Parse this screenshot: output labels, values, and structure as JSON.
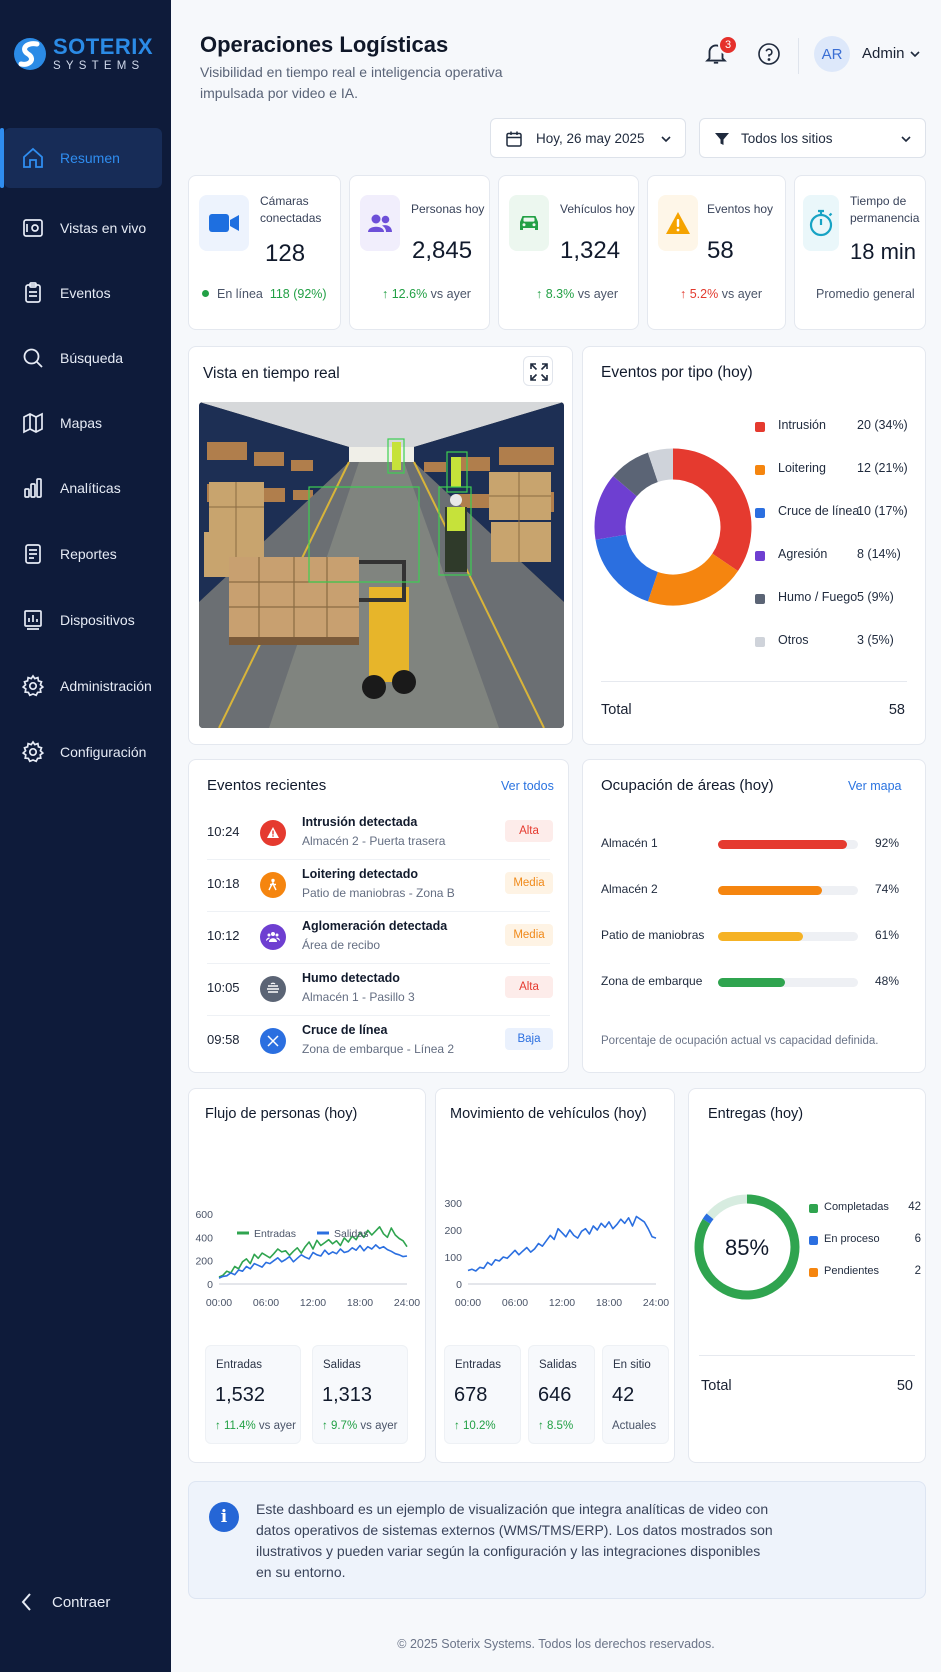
{
  "brand": {
    "name": "SOTERIX",
    "sub": "SYSTEMS"
  },
  "sidebar": {
    "items": [
      {
        "label": "Resumen",
        "icon": "home-icon"
      },
      {
        "label": "Vistas en vivo",
        "icon": "live-view-icon"
      },
      {
        "label": "Eventos",
        "icon": "clipboard-icon"
      },
      {
        "label": "Búsqueda",
        "icon": "search-icon"
      },
      {
        "label": "Mapas",
        "icon": "map-icon"
      },
      {
        "label": "Analíticas",
        "icon": "bar-chart-icon"
      },
      {
        "label": "Reportes",
        "icon": "report-icon"
      },
      {
        "label": "Dispositivos",
        "icon": "devices-icon"
      },
      {
        "label": "Administración",
        "icon": "gear-icon"
      },
      {
        "label": "Configuración",
        "icon": "gear-icon"
      }
    ],
    "collapse_label": "Contraer"
  },
  "header": {
    "title": "Operaciones Logísticas",
    "subtitle": "Visibilidad en tiempo real e inteligencia operativa impulsada por video e IA.",
    "notifications": "3",
    "avatar_initials": "AR",
    "user": "Admin",
    "date_filter": "Hoy, 26 may 2025",
    "site_filter": "Todos los sitios"
  },
  "kpis": [
    {
      "label": "Cámaras conectadas",
      "value": "128",
      "foot_label": "En línea",
      "foot_value": "118 (92%)",
      "color": "#1e6fe0"
    },
    {
      "label": "Personas hoy",
      "value": "2,845",
      "trend": "12.6%",
      "trend_suffix": "vs ayer",
      "color": "#6d4fd8"
    },
    {
      "label": "Vehículos hoy",
      "value": "1,324",
      "trend": "8.3%",
      "trend_suffix": "vs ayer",
      "color": "#22a045"
    },
    {
      "label": "Eventos hoy",
      "value": "58",
      "trend": "5.2%",
      "trend_suffix": "vs ayer",
      "color": "#f5a300"
    },
    {
      "label": "Tiempo de permanencia",
      "value": "18 min",
      "foot_label": "Promedio general",
      "color": "#17a3c4"
    }
  ],
  "live_view": {
    "title": "Vista en tiempo real"
  },
  "events_by_type": {
    "title": "Eventos por tipo (hoy)",
    "total_label": "Total",
    "total": "58",
    "legend": [
      {
        "name": "Intrusión",
        "value": "20 (34%)"
      },
      {
        "name": "Loitering",
        "value": "12 (21%)"
      },
      {
        "name": "Cruce de línea",
        "value": "10 (17%)"
      },
      {
        "name": "Agresión",
        "value": "8 (14%)"
      },
      {
        "name": "Humo / Fuego",
        "value": "5 (9%)"
      },
      {
        "name": "Otros",
        "value": "3 (5%)"
      }
    ]
  },
  "recent_events": {
    "title": "Eventos recientes",
    "link": "Ver todos",
    "items": [
      {
        "time": "10:24",
        "title": "Intrusión detectada",
        "sub": "Almacén 2 - Puerta trasera",
        "badge": "Alta",
        "icon": "warning-icon"
      },
      {
        "time": "10:18",
        "title": "Loitering detectado",
        "sub": "Patio de maniobras - Zona B",
        "badge": "Media",
        "icon": "person-icon"
      },
      {
        "time": "10:12",
        "title": "Aglomeración detectada",
        "sub": "Área de recibo",
        "badge": "Media",
        "icon": "group-icon"
      },
      {
        "time": "10:05",
        "title": "Humo detectado",
        "sub": "Almacén 1 - Pasillo 3",
        "badge": "Alta",
        "icon": "smoke-icon"
      },
      {
        "time": "09:58",
        "title": "Cruce de línea",
        "sub": "Zona de embarque - Línea 2",
        "badge": "Baja",
        "icon": "cross-line-icon"
      }
    ]
  },
  "occupancy": {
    "title": "Ocupación de áreas (hoy)",
    "link": "Ver mapa",
    "items": [
      {
        "name": "Almacén 1",
        "value": "92%"
      },
      {
        "name": "Almacén 2",
        "value": "74%"
      },
      {
        "name": "Patio de maniobras",
        "value": "61%"
      },
      {
        "name": "Zona de embarque",
        "value": "48%"
      }
    ],
    "note": "Porcentaje de ocupación actual vs capacidad definida."
  },
  "people_flow": {
    "title": "Flujo de personas (hoy)",
    "stats": [
      {
        "label": "Entradas",
        "value": "1,532",
        "trend": "11.4%",
        "suffix": "vs ayer"
      },
      {
        "label": "Salidas",
        "value": "1,313",
        "trend": "9.7%",
        "suffix": "vs ayer"
      }
    ]
  },
  "vehicle_movement": {
    "title": "Movimiento de vehículos (hoy)",
    "stats": [
      {
        "label": "Entradas",
        "value": "678",
        "trend": "10.2%"
      },
      {
        "label": "Salidas",
        "value": "646",
        "trend": "8.5%"
      },
      {
        "label": "En sitio",
        "value": "42",
        "foot": "Actuales"
      }
    ]
  },
  "deliveries": {
    "title": "Entregas (hoy)",
    "total_label": "Total",
    "total": "50"
  },
  "info": {
    "text": "Este dashboard es un ejemplo de visualización que integra analíticas de video con datos operativos de sistemas externos (WMS/TMS/ERP). Los datos mostrados son ilustrativos y pueden variar según la configuración y las integraciones disponibles en su entorno."
  },
  "footer": "© 2025 Soterix Systems. Todos los derechos reservados.",
  "chart_data": [
    {
      "type": "pie",
      "title": "Eventos por tipo (hoy)",
      "categories": [
        "Intrusión",
        "Loitering",
        "Cruce de línea",
        "Agresión",
        "Humo / Fuego",
        "Otros"
      ],
      "values": [
        20,
        12,
        10,
        8,
        5,
        3
      ],
      "colors": [
        "#e53a2f",
        "#f5850f",
        "#2b6fe0",
        "#6e3fd1",
        "#5b6475",
        "#cfd3da"
      ]
    },
    {
      "type": "bar",
      "title": "Ocupación de áreas (hoy)",
      "categories": [
        "Almacén 1",
        "Almacén 2",
        "Patio de maniobras",
        "Zona de embarque"
      ],
      "values": [
        92,
        74,
        61,
        48
      ],
      "colors": [
        "#e53a2f",
        "#f5850f",
        "#f5b225",
        "#2fa44f"
      ],
      "ylim": [
        0,
        100
      ]
    },
    {
      "type": "line",
      "title": "Flujo de personas (hoy)",
      "x_ticks": [
        "00:00",
        "06:00",
        "12:00",
        "18:00",
        "24:00"
      ],
      "y_ticks": [
        0,
        200,
        400,
        600
      ],
      "ylim": [
        0,
        600
      ],
      "xlim": [
        0,
        24
      ],
      "series": [
        {
          "name": "Entradas",
          "color": "#2fa44f",
          "x": [
            0,
            0.5,
            1,
            1.5,
            2,
            2.5,
            3,
            3.5,
            4,
            4.5,
            5,
            5.5,
            6,
            6.5,
            7,
            7.5,
            8,
            8.5,
            9,
            9.5,
            10,
            10.5,
            11,
            11.5,
            12,
            12.5,
            13,
            13.5,
            14,
            14.5,
            15,
            15.5,
            16,
            16.5,
            17,
            17.5,
            18,
            18.5,
            19,
            19.5,
            20,
            20.5,
            21,
            21.5,
            22,
            22.5,
            23,
            23.5,
            24
          ],
          "values": [
            60,
            75,
            110,
            95,
            150,
            130,
            190,
            215,
            175,
            255,
            220,
            265,
            245,
            225,
            260,
            300,
            275,
            285,
            245,
            280,
            310,
            265,
            320,
            360,
            300,
            375,
            330,
            355,
            380,
            345,
            370,
            330,
            395,
            360,
            410,
            380,
            440,
            400,
            460,
            420,
            455,
            490,
            430,
            400,
            480,
            420,
            390,
            370,
            320
          ]
        },
        {
          "name": "Salidas",
          "color": "#2b6fe0",
          "x": [
            0,
            0.5,
            1,
            1.5,
            2,
            2.5,
            3,
            3.5,
            4,
            4.5,
            5,
            5.5,
            6,
            6.5,
            7,
            7.5,
            8,
            8.5,
            9,
            9.5,
            10,
            10.5,
            11,
            11.5,
            12,
            12.5,
            13,
            13.5,
            14,
            14.5,
            15,
            15.5,
            16,
            16.5,
            17,
            17.5,
            18,
            18.5,
            19,
            19.5,
            20,
            20.5,
            21,
            21.5,
            22,
            22.5,
            23,
            23.5,
            24
          ],
          "values": [
            50,
            65,
            70,
            95,
            80,
            120,
            110,
            150,
            130,
            175,
            160,
            145,
            185,
            175,
            200,
            225,
            190,
            210,
            235,
            190,
            220,
            250,
            230,
            215,
            270,
            250,
            240,
            290,
            255,
            275,
            260,
            300,
            270,
            280,
            310,
            290,
            330,
            285,
            320,
            300,
            335,
            305,
            320,
            295,
            280,
            260,
            250,
            235,
            240
          ]
        }
      ]
    },
    {
      "type": "line",
      "title": "Movimiento de vehículos (hoy)",
      "x_ticks": [
        "00:00",
        "06:00",
        "12:00",
        "18:00",
        "24:00"
      ],
      "y_ticks": [
        0,
        100,
        200,
        300
      ],
      "ylim": [
        0,
        300
      ],
      "xlim": [
        0,
        24
      ],
      "series": [
        {
          "name": "",
          "color": "#2b6fe0",
          "x": [
            0,
            0.5,
            1,
            1.5,
            2,
            2.5,
            3,
            3.5,
            4,
            4.5,
            5,
            5.5,
            6,
            6.5,
            7,
            7.5,
            8,
            8.5,
            9,
            9.5,
            10,
            10.5,
            11,
            11.5,
            12,
            12.5,
            13,
            13.5,
            14,
            14.5,
            15,
            15.5,
            16,
            16.5,
            17,
            17.5,
            18,
            18.5,
            19,
            19.5,
            20,
            20.5,
            21,
            21.5,
            22,
            22.5,
            23,
            23.5,
            24
          ],
          "values": [
            50,
            55,
            48,
            62,
            58,
            80,
            70,
            90,
            85,
            100,
            95,
            110,
            125,
            108,
            122,
            135,
            118,
            130,
            150,
            140,
            160,
            180,
            165,
            205,
            190,
            175,
            200,
            180,
            170,
            195,
            205,
            185,
            215,
            200,
            225,
            210,
            230,
            205,
            220,
            240,
            225,
            245,
            215,
            250,
            240,
            230,
            205,
            175,
            170
          ]
        }
      ]
    },
    {
      "type": "pie",
      "title": "Entregas (hoy)",
      "center_label": "85%",
      "categories": [
        "Completadas",
        "En proceso",
        "Pendientes"
      ],
      "values": [
        42,
        6,
        2
      ],
      "colors": [
        "#2fa44f",
        "#2b6fe0",
        "#f5850f"
      ]
    }
  ]
}
